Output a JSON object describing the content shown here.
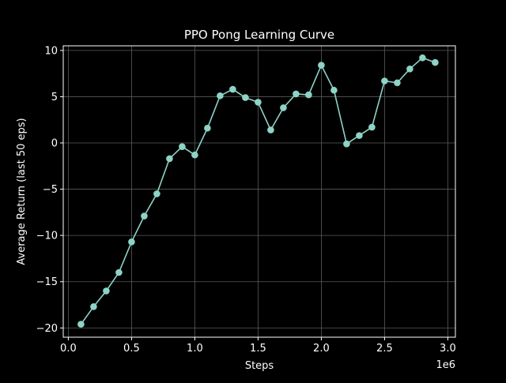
{
  "chart_data": {
    "type": "line",
    "title": "PPO Pong Learning Curve",
    "xlabel": "Steps",
    "ylabel": "Average Return (last 50 eps)",
    "x_offset_label": "1e6",
    "xlim": [
      -0.04,
      3.06
    ],
    "ylim": [
      -21.0,
      10.5
    ],
    "xticks": [
      0.0,
      0.5,
      1.0,
      1.5,
      2.0,
      2.5,
      3.0
    ],
    "xtick_labels": [
      "0.0",
      "0.5",
      "1.0",
      "1.5",
      "2.0",
      "2.5",
      "3.0"
    ],
    "yticks": [
      -20,
      -15,
      -10,
      -5,
      0,
      5,
      10
    ],
    "ytick_labels": [
      "−20",
      "−15",
      "−10",
      "−5",
      "0",
      "5",
      "10"
    ],
    "grid": true,
    "series": [
      {
        "x": [
          0.1,
          0.2,
          0.3,
          0.4,
          0.5,
          0.6,
          0.7,
          0.8,
          0.9,
          1.0,
          1.1,
          1.2,
          1.3,
          1.4,
          1.5,
          1.6,
          1.7,
          1.8,
          1.9,
          2.0,
          2.1,
          2.2,
          2.3,
          2.4,
          2.5,
          2.6,
          2.7,
          2.8,
          2.9
        ],
        "y": [
          -19.6,
          -17.7,
          -16.0,
          -14.0,
          -10.7,
          -7.9,
          -5.5,
          -1.7,
          -0.4,
          -1.3,
          1.6,
          5.1,
          5.8,
          4.9,
          4.4,
          1.4,
          3.8,
          5.3,
          5.2,
          8.4,
          5.7,
          -0.1,
          0.8,
          1.7,
          6.7,
          6.5,
          8.0,
          9.2,
          8.7
        ]
      }
    ]
  },
  "style": {
    "background": "#000000",
    "line_color": "#8dd3c7",
    "grid_color": "#5a5a5a",
    "text_color": "#ffffff"
  }
}
